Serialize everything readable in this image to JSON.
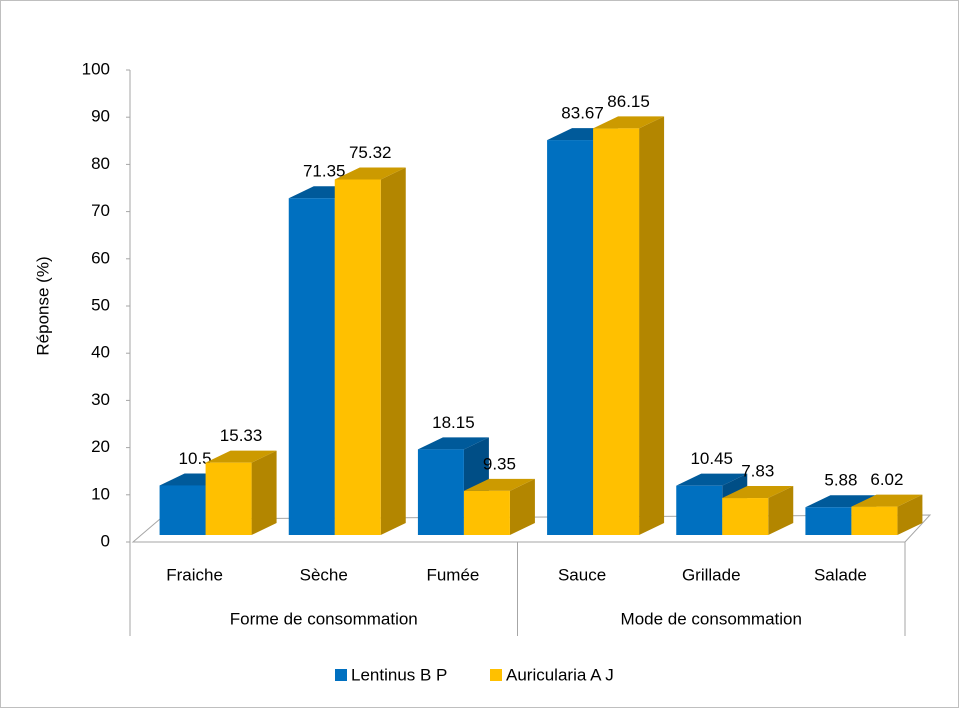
{
  "chart_data": {
    "type": "bar3d",
    "y_label": "Réponse (%)",
    "categories": [
      "Fraiche",
      "Sèche",
      "Fumée",
      "Sauce",
      "Grillade",
      "Salade"
    ],
    "groups": [
      {
        "name": "Forme de consommation",
        "size": 3
      },
      {
        "name": "Mode de consommation",
        "size": 3
      }
    ],
    "series": [
      {
        "name": "Lentinus B P",
        "color": "#0070c0",
        "values": [
          10.5,
          71.35,
          18.15,
          83.67,
          10.45,
          5.88
        ]
      },
      {
        "name": "Auricularia A J",
        "color": "#ffc000",
        "values": [
          15.33,
          75.32,
          9.35,
          86.15,
          7.83,
          6.02
        ]
      }
    ],
    "ylim": [
      0,
      100
    ],
    "yticks": [
      0,
      10,
      20,
      30,
      40,
      50,
      60,
      70,
      80,
      90,
      100
    ],
    "grid": false,
    "legend": "bottom"
  }
}
